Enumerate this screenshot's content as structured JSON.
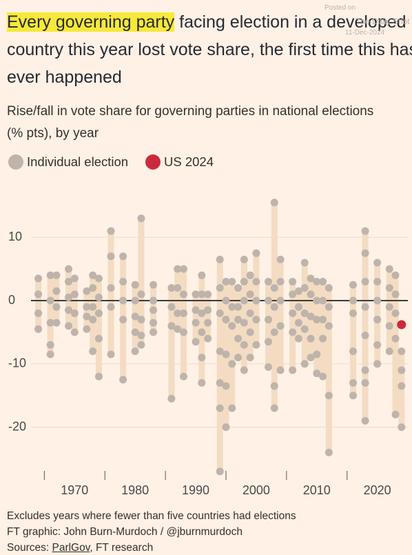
{
  "chart_data": {
    "type": "strip",
    "title": {
      "highlight": "Every governing party",
      "rest": "facing election in a developed country this year lost vote share, the first time this has ever happened"
    },
    "subtitle": "Rise/fall in vote share for governing parties in national elections (% pts), by year",
    "watermark": [
      "Posted on",
      "The Daily Shot",
      "11-Dec-2024"
    ],
    "notes": [
      "Excludes years where fewer than five countries had elections",
      "FT graphic: John Burn-Murdoch / @jburnmurdoch"
    ],
    "sources": {
      "lead": "Sources:",
      "link": "ParlGov",
      "rest": ", FT research"
    },
    "xlim": [
      1962,
      2025.5
    ],
    "xticks": [
      1970,
      1980,
      1990,
      2000,
      2010,
      2020
    ],
    "xminor_ticks": [
      1965,
      1975,
      1985,
      1995,
      2005,
      2015
    ],
    "ylim": [
      -28,
      17
    ],
    "yticks": [
      10,
      0,
      -10,
      -20
    ],
    "grid": true,
    "range_color": "#f3dcc2",
    "series": [
      {
        "name": "Individual election",
        "color": "#beb4ab",
        "x": [
          1964,
          1966,
          1967,
          1969,
          1970,
          1972,
          1973,
          1974,
          1976,
          1978,
          1980,
          1981,
          1983,
          1986,
          1987,
          1988,
          1990,
          1991,
          1992,
          1994,
          1995,
          1996,
          1997,
          1998,
          1999,
          2000,
          2002,
          2003,
          2004,
          2006,
          2007,
          2008,
          2009,
          2010,
          2011,
          2012,
          2016,
          2018,
          2020,
          2022,
          2023,
          2024
        ],
        "values": [
          [
            3.5,
            1,
            -2,
            -4.5
          ],
          [
            4,
            0,
            -3.5,
            -7,
            -8.5
          ],
          [
            4,
            1.5,
            -1,
            -3.5
          ],
          [
            5,
            3,
            0.5,
            -1.5,
            -4
          ],
          [
            3.5,
            1,
            -2,
            -5
          ],
          [
            1.5,
            -1,
            -2.5,
            -4.5
          ],
          [
            4,
            2,
            -1,
            -3,
            -8
          ],
          [
            3.5,
            0.5,
            -2,
            -6,
            -12
          ],
          [
            11,
            7,
            2,
            -1,
            -8.5
          ],
          [
            7,
            3,
            0,
            -3,
            -12.5
          ],
          [
            2.5,
            0,
            -2.5,
            -5,
            -8
          ],
          [
            13,
            1,
            -3,
            -5.5,
            -7
          ],
          [
            2.5,
            0,
            -1.5,
            -3.5,
            -5
          ],
          [
            2,
            -1,
            -4,
            -15.5
          ],
          [
            5,
            2,
            -2,
            -4.5
          ],
          [
            5,
            1,
            -2,
            -5,
            -12
          ],
          [
            1,
            -1.5,
            -3.5,
            -6.5
          ],
          [
            4,
            1,
            -2,
            -5,
            -9,
            -13
          ],
          [
            1,
            -1.5,
            -3.5,
            -6
          ],
          [
            6.5,
            2,
            -2,
            -8,
            -13,
            -17,
            -27
          ],
          [
            3,
            0,
            -3,
            -8.5,
            -13.5,
            -20
          ],
          [
            3,
            -1,
            -4,
            -10,
            -17
          ],
          [
            2,
            -1,
            -3,
            -6,
            -9
          ],
          [
            6.5,
            3,
            0,
            -3.5,
            -7,
            -11
          ],
          [
            4,
            1,
            -2,
            -5,
            -9
          ],
          [
            7.5,
            3,
            0,
            -3,
            -7
          ],
          [
            3,
            0,
            -3,
            -6.5,
            -10.5
          ],
          [
            15.5,
            2,
            -1,
            -5,
            -13.5,
            -17
          ],
          [
            6.5,
            3,
            0,
            -4,
            -11
          ],
          [
            3,
            1,
            -2,
            -5,
            -11
          ],
          [
            1.5,
            -1,
            -3.5,
            -6
          ],
          [
            6,
            2,
            -2,
            -4.5,
            -10
          ],
          [
            3.5,
            1,
            -2.5,
            -6,
            -9
          ],
          [
            3,
            0,
            -3,
            -8.5,
            -11.5
          ],
          [
            3,
            0,
            -3,
            -6,
            -12
          ],
          [
            2,
            -1,
            -4,
            -15,
            -24
          ],
          [
            2.5,
            0,
            -2,
            -8,
            -13,
            -15
          ],
          [
            11,
            7.5,
            3,
            -1,
            -5.5,
            -11,
            -13,
            -19
          ],
          [
            6,
            3,
            0,
            -3,
            -7,
            -10
          ],
          [
            5,
            2,
            -1,
            -4,
            -8
          ],
          [
            4,
            1,
            -2,
            -6,
            -18
          ],
          [
            -8,
            -11,
            -13.5,
            -20
          ]
        ]
      },
      {
        "name": "US 2024",
        "color": "#cc2a3c",
        "x": [
          2024
        ],
        "values": [
          [
            -3.8
          ]
        ]
      }
    ]
  }
}
